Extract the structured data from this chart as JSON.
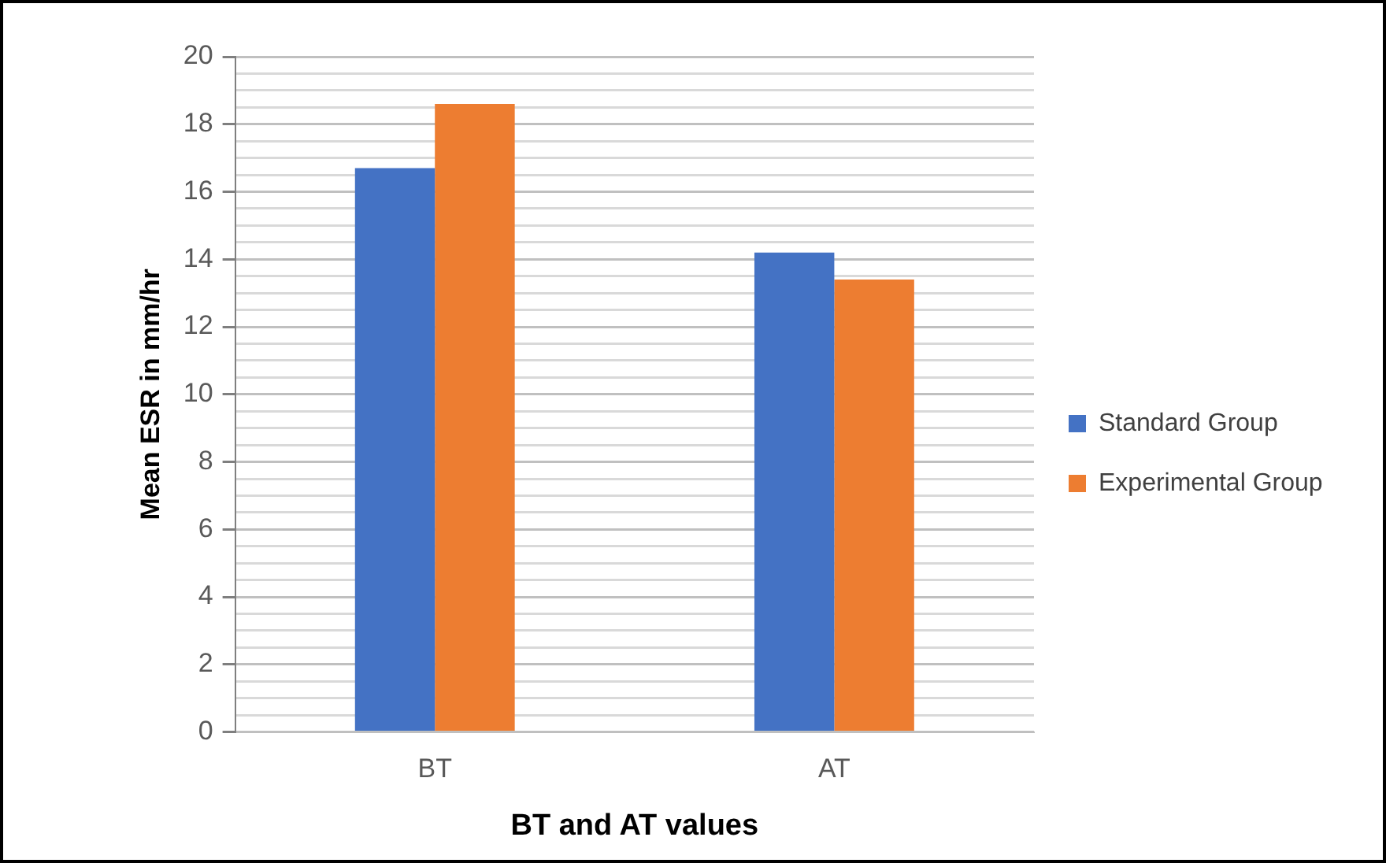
{
  "chart_data": {
    "type": "bar",
    "xlabel": "BT and AT values",
    "ylabel": "Mean ESR in mm/hr",
    "categories": [
      "BT",
      "AT"
    ],
    "series": [
      {
        "name": "Standard Group",
        "color": "#4472c4",
        "values": [
          16.7,
          14.2
        ]
      },
      {
        "name": "Experimental Group",
        "color": "#ed7d31",
        "values": [
          18.6,
          13.4
        ]
      }
    ],
    "ylim": [
      0,
      20
    ],
    "yticks": [
      0,
      {
        "value": 0.5,
        "label": null
      },
      {
        "value": 1,
        "label": null
      },
      {
        "value": 1.5,
        "label": null
      },
      2,
      {
        "value": 2.5,
        "label": null
      },
      {
        "value": 3,
        "label": null
      },
      {
        "value": 3.5,
        "label": null
      },
      4,
      {
        "value": 4.5,
        "label": null
      },
      {
        "value": 5,
        "label": null
      },
      {
        "value": 5.5,
        "label": null
      },
      6,
      {
        "value": 6.5,
        "label": null
      },
      {
        "value": 7,
        "label": null
      },
      {
        "value": 7.5,
        "label": null
      },
      8,
      {
        "value": 8.5,
        "label": null
      },
      {
        "value": 9,
        "label": null
      },
      {
        "value": 9.5,
        "label": null
      },
      10,
      {
        "value": 10.5,
        "label": null
      },
      {
        "value": 11,
        "label": null
      },
      {
        "value": 11.5,
        "label": null
      },
      12,
      {
        "value": 12.5,
        "label": null
      },
      {
        "value": 13,
        "label": null
      },
      {
        "value": 13.5,
        "label": null
      },
      14,
      {
        "value": 14.5,
        "label": null
      },
      {
        "value": 15,
        "label": null
      },
      {
        "value": 15.5,
        "label": null
      },
      16,
      {
        "value": 16.5,
        "label": null
      },
      {
        "value": 17,
        "label": null
      },
      {
        "value": 17.5,
        "label": null
      },
      18,
      {
        "value": 18.5,
        "label": null
      },
      {
        "value": 19,
        "label": null
      },
      {
        "value": 19.5,
        "label": null
      },
      20
    ],
    "grid": "y",
    "legend": "right"
  }
}
